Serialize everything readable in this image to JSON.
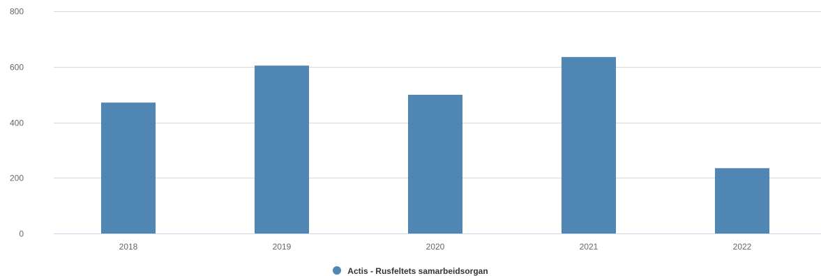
{
  "chart_data": {
    "type": "bar",
    "categories": [
      "2018",
      "2019",
      "2020",
      "2021",
      "2022"
    ],
    "series": [
      {
        "name": "Actis - Rusfeltets samarbeidsorgan",
        "values": [
          471,
          604,
          499,
          635,
          235
        ],
        "color": "#4f86b4"
      }
    ],
    "y_ticks": [
      "0",
      "200",
      "400",
      "600",
      "800"
    ],
    "ylim": [
      0,
      800
    ],
    "grid": true,
    "legend": "bottom-center"
  }
}
